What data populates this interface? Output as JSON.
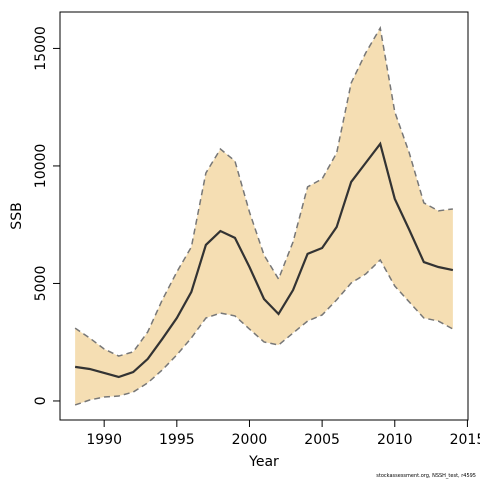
{
  "chart_data": {
    "type": "band-line",
    "x_label": "Year",
    "y_label": "SSB",
    "caption": "stockassessment.org, NSSH_test, r4595",
    "x": [
      1988,
      1989,
      1990,
      1991,
      1992,
      1993,
      1994,
      1995,
      1996,
      1997,
      1998,
      1999,
      2000,
      2001,
      2002,
      2003,
      2004,
      2005,
      2006,
      2007,
      2008,
      2009,
      2010,
      2011,
      2012,
      2013,
      2014
    ],
    "estimate": {
      "color": "#333333",
      "values": [
        1450,
        1360,
        1190,
        1020,
        1230,
        1790,
        2640,
        3530,
        4640,
        6640,
        7230,
        6940,
        5700,
        4340,
        3700,
        4720,
        6260,
        6510,
        7400,
        9320,
        10130,
        10940,
        8600,
        7280,
        5910,
        5700,
        5570
      ]
    },
    "upper": {
      "color": "#777777",
      "values": [
        3100,
        2680,
        2210,
        1910,
        2090,
        2940,
        4300,
        5490,
        6550,
        9700,
        10720,
        10210,
        8040,
        6210,
        5190,
        6770,
        9110,
        9450,
        10550,
        13530,
        14810,
        15870,
        12300,
        10550,
        8430,
        8090,
        8170
      ]
    },
    "lower": {
      "color": "#777777",
      "values": [
        -170,
        40,
        170,
        210,
        380,
        770,
        1320,
        1960,
        2680,
        3530,
        3740,
        3620,
        3060,
        2510,
        2380,
        2890,
        3400,
        3660,
        4300,
        5020,
        5400,
        6000,
        4890,
        4210,
        3530,
        3400,
        3060
      ]
    },
    "band_color": "#f5deb3",
    "xlim": [
      1986.96,
      2015.04
    ],
    "xticks": [
      1990,
      1995,
      2000,
      2005,
      2010,
      2015
    ],
    "ylim": [
      -810,
      16550
    ],
    "yticks": [
      0,
      5000,
      10000,
      15000
    ]
  }
}
